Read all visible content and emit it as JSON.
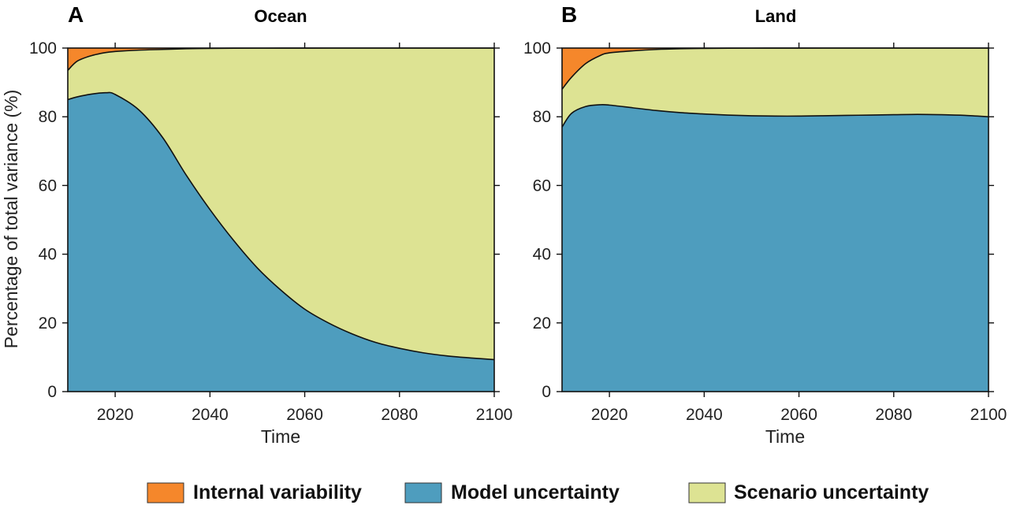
{
  "ylabel": "Percentage of total variance (%)",
  "legend": {
    "placement": "bottom",
    "items": [
      {
        "label": "Internal variability",
        "color": "#F5872B"
      },
      {
        "label": "Model uncertainty",
        "color": "#4E9DBE"
      },
      {
        "label": "Scenario uncertainty",
        "color": "#DDE393"
      }
    ]
  },
  "chart_data": [
    {
      "type": "area",
      "stacked": true,
      "panel_letter": "A",
      "title": "Ocean",
      "xlabel": "Time",
      "ylabel": "Percentage of total variance (%)",
      "xlim": [
        2010,
        2100
      ],
      "ylim": [
        0,
        100
      ],
      "xticks": [
        2020,
        2040,
        2060,
        2080,
        2100
      ],
      "yticks": [
        0,
        20,
        40,
        60,
        80,
        100
      ],
      "grid": false,
      "x": [
        2010,
        2012,
        2015,
        2018,
        2020,
        2025,
        2030,
        2035,
        2040,
        2045,
        2050,
        2055,
        2060,
        2065,
        2070,
        2075,
        2080,
        2085,
        2090,
        2095,
        2100
      ],
      "series": [
        {
          "name": "Model uncertainty",
          "color": "#4E9DBE",
          "values": [
            85,
            85.8,
            86.6,
            87,
            86.5,
            82,
            74,
            63,
            53,
            44,
            36,
            29.5,
            24,
            20,
            16.8,
            14.3,
            12.6,
            11.3,
            10.4,
            9.8,
            9.3
          ]
        },
        {
          "name": "Scenario uncertainty",
          "color": "#DDE393",
          "values": [
            8.5,
            10.4,
            11.2,
            11.7,
            12.5,
            17.4,
            25.6,
            36.8,
            46.9,
            55.95,
            63.97,
            70.48,
            75.99,
            80,
            83.2,
            85.7,
            87.4,
            88.7,
            89.6,
            90.2,
            90.7
          ]
        },
        {
          "name": "Internal variability",
          "color": "#F5872B",
          "values": [
            6.5,
            3.8,
            2.2,
            1.3,
            1.0,
            0.6,
            0.4,
            0.2,
            0.1,
            0.05,
            0.03,
            0.02,
            0.01,
            0,
            0,
            0,
            0,
            0,
            0,
            0,
            0
          ]
        }
      ]
    },
    {
      "type": "area",
      "stacked": true,
      "panel_letter": "B",
      "title": "Land",
      "xlabel": "Time",
      "ylabel": "",
      "xlim": [
        2010,
        2100
      ],
      "ylim": [
        0,
        100
      ],
      "xticks": [
        2020,
        2040,
        2060,
        2080,
        2100
      ],
      "yticks": [
        0,
        20,
        40,
        60,
        80,
        100
      ],
      "grid": false,
      "x": [
        2010,
        2012,
        2015,
        2018,
        2020,
        2025,
        2030,
        2035,
        2040,
        2045,
        2050,
        2055,
        2060,
        2065,
        2070,
        2075,
        2080,
        2085,
        2090,
        2095,
        2100
      ],
      "series": [
        {
          "name": "Model uncertainty",
          "color": "#4E9DBE",
          "values": [
            77,
            81,
            83,
            83.5,
            83.4,
            82.6,
            81.8,
            81.2,
            80.8,
            80.5,
            80.3,
            80.2,
            80.2,
            80.3,
            80.4,
            80.5,
            80.6,
            80.7,
            80.6,
            80.4,
            80
          ]
        },
        {
          "name": "Scenario uncertainty",
          "color": "#DDE393",
          "values": [
            11,
            10.5,
            12.5,
            14.3,
            15.2,
            16.6,
            17.8,
            18.6,
            19.1,
            19.45,
            19.67,
            19.78,
            19.79,
            19.7,
            19.6,
            19.5,
            19.4,
            19.3,
            19.4,
            19.6,
            20
          ]
        },
        {
          "name": "Internal variability",
          "color": "#F5872B",
          "values": [
            12,
            8.5,
            4.5,
            2.2,
            1.4,
            0.8,
            0.4,
            0.2,
            0.1,
            0.05,
            0.03,
            0.02,
            0.01,
            0,
            0,
            0,
            0,
            0,
            0,
            0,
            0
          ]
        }
      ]
    }
  ]
}
